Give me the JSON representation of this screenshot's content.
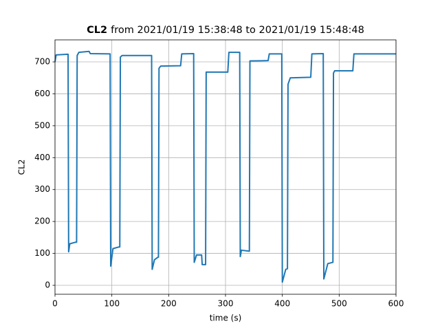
{
  "chart_data": {
    "type": "line",
    "title_parts": [
      "CL2",
      "from 2021/01/19 15:38:48 to 2021/01/19 15:48:48"
    ],
    "x_label": "time (s)",
    "y_label": "CL2",
    "xlim": [
      0,
      600
    ],
    "ylim": [
      -28,
      769
    ],
    "xticks": [
      0,
      100,
      200,
      300,
      400,
      500,
      600
    ],
    "yticks": [
      0,
      100,
      200,
      300,
      400,
      500,
      600,
      700
    ],
    "grid": true,
    "x": [
      0,
      2,
      23,
      24,
      26,
      36,
      38,
      39,
      42,
      60,
      62,
      97,
      98,
      102,
      112,
      114,
      115,
      118,
      170,
      171,
      175,
      181,
      182,
      183,
      186,
      221,
      223,
      244,
      245,
      249,
      258,
      259,
      265,
      266,
      304,
      306,
      325,
      326,
      328,
      342,
      343,
      375,
      377,
      399,
      400,
      406,
      409,
      410,
      414,
      450,
      452,
      472,
      473,
      480,
      489,
      490,
      492,
      524,
      526,
      600
    ],
    "series": [
      {
        "name": "CL2",
        "color": "#1f77b4",
        "values": [
          700,
          722,
          724,
          105,
          130,
          135,
          135,
          720,
          730,
          733,
          726,
          725,
          60,
          115,
          120,
          120,
          715,
          720,
          720,
          50,
          80,
          88,
          88,
          680,
          687,
          688,
          725,
          726,
          72,
          95,
          95,
          65,
          65,
          668,
          668,
          730,
          730,
          90,
          110,
          107,
          703,
          704,
          725,
          725,
          10,
          50,
          52,
          630,
          650,
          652,
          725,
          726,
          20,
          68,
          72,
          665,
          672,
          672,
          725,
          725
        ]
      }
    ]
  }
}
